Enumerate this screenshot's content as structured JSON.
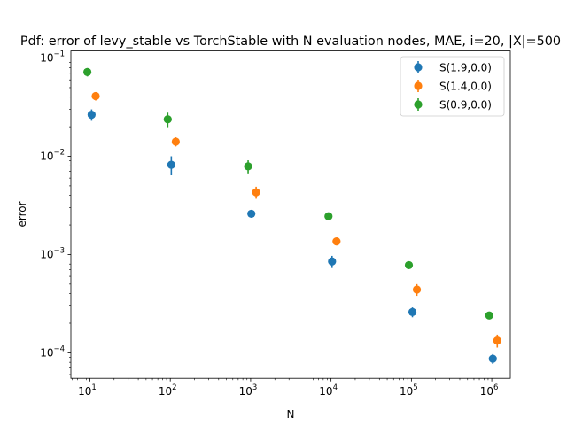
{
  "chart_data": {
    "type": "scatter",
    "title": "Pdf: error of levy_stable vs TorchStable with N evaluation nodes, MAE, i=20, |X|=500",
    "xlabel": "N",
    "ylabel": "error",
    "x_scale": "log",
    "y_scale": "log",
    "xlim": [
      5.8,
      1700000
    ],
    "ylim": [
      5.5e-05,
      0.118
    ],
    "grid": false,
    "legend_position": "top-right",
    "x_ticks": [
      {
        "value": 10,
        "base": "10",
        "exp": "1"
      },
      {
        "value": 100,
        "base": "10",
        "exp": "2"
      },
      {
        "value": 1000,
        "base": "10",
        "exp": "3"
      },
      {
        "value": 10000,
        "base": "10",
        "exp": "4"
      },
      {
        "value": 100000,
        "base": "10",
        "exp": "5"
      },
      {
        "value": 1000000,
        "base": "10",
        "exp": "6"
      }
    ],
    "y_ticks": [
      {
        "value": 0.0001,
        "base": "10",
        "exp": "−4"
      },
      {
        "value": 0.001,
        "base": "10",
        "exp": "−3"
      },
      {
        "value": 0.01,
        "base": "10",
        "exp": "−2"
      },
      {
        "value": 0.1,
        "base": "10",
        "exp": "−1"
      }
    ],
    "series": [
      {
        "name": "S(1.9,0.0)",
        "color": "#1f77b4",
        "x": [
          10.5,
          103,
          1020,
          10300,
          103000,
          1030000
        ],
        "y": [
          0.0265,
          0.0082,
          0.0026,
          0.00085,
          0.00026,
          8.7e-05
        ],
        "err": [
          0.0035,
          0.0018,
          0.00018,
          0.00012,
          3e-05,
          1e-05
        ]
      },
      {
        "name": "S(1.4,0.0)",
        "color": "#ff7f0e",
        "x": [
          11.8,
          117,
          1170,
          11700,
          117000,
          1170000
        ],
        "y": [
          0.041,
          0.0141,
          0.0043,
          0.00136,
          0.00044,
          0.000133
        ],
        "err": [
          0.004,
          0.0015,
          0.0006,
          0.00012,
          6e-05,
          2e-05
        ]
      },
      {
        "name": "S(0.9,0.0)",
        "color": "#2ca02c",
        "x": [
          9.3,
          93,
          930,
          9300,
          93000,
          930000
        ],
        "y": [
          0.072,
          0.0238,
          0.0079,
          0.00245,
          0.00078,
          0.00024
        ],
        "err": [
          0.007,
          0.004,
          0.0012,
          0.00012,
          6e-05,
          2e-05
        ]
      }
    ]
  }
}
